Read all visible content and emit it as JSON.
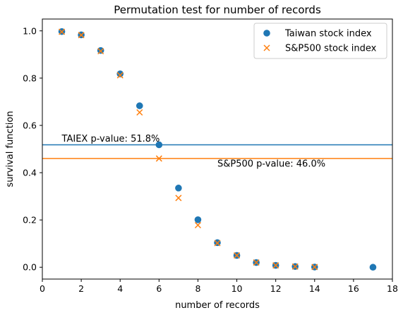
{
  "chart_data": {
    "type": "scatter",
    "title": "Permutation test for number of records",
    "xlabel": "number of records",
    "ylabel": "survival function",
    "xlim": [
      0,
      18
    ],
    "ylim": [
      -0.05,
      1.05
    ],
    "xticks": [
      0,
      2,
      4,
      6,
      8,
      10,
      12,
      14,
      16,
      18
    ],
    "yticks": [
      0.0,
      0.2,
      0.4,
      0.6,
      0.8,
      1.0
    ],
    "xtick_labels": [
      "0",
      "2",
      "4",
      "6",
      "8",
      "10",
      "12",
      "14",
      "16",
      "18"
    ],
    "ytick_labels": [
      "0.0",
      "0.2",
      "0.4",
      "0.6",
      "0.8",
      "1.0"
    ],
    "grid": false,
    "legend_position": "top-right",
    "series": [
      {
        "name": "Taiwan stock index",
        "marker": "circle",
        "color": "#1f77b4",
        "x": [
          1,
          2,
          3,
          4,
          5,
          6,
          7,
          8,
          9,
          10,
          11,
          12,
          13,
          14,
          17
        ],
        "y": [
          0.997,
          0.983,
          0.917,
          0.818,
          0.683,
          0.518,
          0.335,
          0.201,
          0.104,
          0.05,
          0.02,
          0.008,
          0.003,
          0.001,
          0.0
        ]
      },
      {
        "name": "S&P500 stock index",
        "marker": "x",
        "color": "#ff7f0e",
        "x": [
          1,
          2,
          3,
          4,
          5,
          6,
          7,
          8,
          9,
          10,
          11,
          12,
          13,
          14
        ],
        "y": [
          0.996,
          0.982,
          0.914,
          0.812,
          0.655,
          0.46,
          0.293,
          0.178,
          0.102,
          0.05,
          0.02,
          0.008,
          0.003,
          0.001
        ]
      }
    ],
    "hlines": [
      {
        "y": 0.518,
        "color": "#1f77b4",
        "label": "TAIEX p-value: 51.8%",
        "label_x": 1.0,
        "label_y": 0.532
      },
      {
        "y": 0.46,
        "color": "#ff7f0e",
        "label": "S&P500 p-value: 46.0%",
        "label_x": 9.0,
        "label_y": 0.425
      }
    ]
  }
}
